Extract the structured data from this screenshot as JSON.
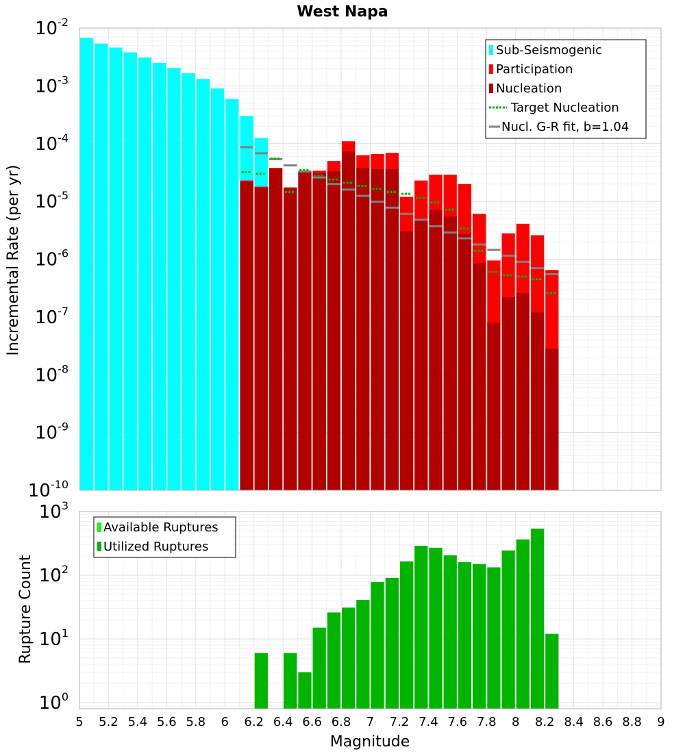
{
  "chart_data": [
    {
      "type": "bar",
      "title": "West Napa",
      "xlabel": "",
      "ylabel": "Incremental Rate (per yr)",
      "yscale": "log",
      "xlim": [
        5,
        9
      ],
      "ylim": [
        1e-10,
        0.01
      ],
      "y_tick_labels": [
        {
          "base": "10",
          "exp": "-10"
        },
        {
          "base": "10",
          "exp": "-9"
        },
        {
          "base": "10",
          "exp": "-8"
        },
        {
          "base": "10",
          "exp": "-7"
        },
        {
          "base": "10",
          "exp": "-6"
        },
        {
          "base": "10",
          "exp": "-5"
        },
        {
          "base": "10",
          "exp": "-4"
        },
        {
          "base": "10",
          "exp": "-3"
        },
        {
          "base": "10",
          "exp": "-2"
        }
      ],
      "legend": [
        {
          "label": "Sub-Seismogenic",
          "color": "#00ffff",
          "kind": "box"
        },
        {
          "label": "Participation",
          "color": "#ff0000",
          "kind": "box"
        },
        {
          "label": "Nucleation",
          "color": "#b20000",
          "kind": "box"
        },
        {
          "label": "Target Nucleation",
          "color": "#00b400",
          "kind": "dotted"
        },
        {
          "label": "Nucl. G-R fit, b=1.04",
          "color": "#808080",
          "kind": "line"
        }
      ],
      "legend_position": "top-right",
      "series": [
        {
          "name": "Sub-Seismogenic",
          "color": "#00ffff",
          "x": [
            5.05,
            5.15,
            5.25,
            5.35,
            5.45,
            5.55,
            5.65,
            5.75,
            5.85,
            5.95,
            6.05,
            6.15,
            6.25
          ],
          "values": [
            0.0068,
            0.0054,
            0.0046,
            0.0038,
            0.0031,
            0.0025,
            0.00205,
            0.00165,
            0.00132,
            0.0009,
            0.00059,
            0.0003,
            0.000125
          ]
        },
        {
          "name": "Participation",
          "color": "#ff0000",
          "x": [
            6.15,
            6.25,
            6.35,
            6.45,
            6.55,
            6.65,
            6.75,
            6.85,
            6.95,
            7.05,
            7.15,
            7.25,
            7.35,
            7.45,
            7.55,
            7.65,
            7.75,
            7.85,
            7.95,
            8.05,
            8.15,
            8.25
          ],
          "values": [
            2.3e-05,
            1.8e-05,
            3.8e-05,
            1.75e-05,
            3.3e-05,
            3.4e-05,
            5e-05,
            0.00011,
            6.3e-05,
            6.6e-05,
            6.9e-05,
            1.2e-05,
            2.3e-05,
            2.9e-05,
            2.9e-05,
            2e-05,
            6.1e-06,
            9.5e-07,
            2.8e-06,
            4.1e-06,
            2.6e-06,
            6.5e-07
          ]
        },
        {
          "name": "Nucleation",
          "color": "#b20000",
          "x": [
            6.15,
            6.25,
            6.35,
            6.45,
            6.55,
            6.65,
            6.75,
            6.85,
            6.95,
            7.05,
            7.15,
            7.25,
            7.35,
            7.45,
            7.55,
            7.65,
            7.75,
            7.85,
            7.95,
            8.05,
            8.15,
            8.25
          ],
          "values": [
            2.2e-05,
            1.75e-05,
            3.75e-05,
            1.7e-05,
            3.25e-05,
            3.1e-05,
            3.3e-05,
            7.3e-05,
            3.8e-05,
            3.6e-05,
            3.6e-05,
            3e-06,
            5e-06,
            7.1e-06,
            5.5e-06,
            2.7e-06,
            8.5e-07,
            8e-08,
            2.2e-07,
            2.6e-07,
            1.2e-07,
            2.8e-08
          ]
        },
        {
          "name": "Target Nucleation",
          "color": "#00b400",
          "style": "dotted",
          "x": [
            6.15,
            6.25,
            6.35,
            6.45,
            6.55,
            6.65,
            6.75,
            6.85,
            6.95,
            7.05,
            7.15,
            7.25,
            7.35,
            7.45,
            7.55,
            7.65,
            7.75,
            7.85,
            7.95,
            8.05,
            8.15,
            8.25
          ],
          "values": [
            3.2e-05,
            3e-05,
            5.5e-05,
            1.45e-05,
            3.5e-05,
            2.8e-05,
            2.4e-05,
            2.1e-05,
            1.85e-05,
            1.65e-05,
            1.45e-05,
            1.35e-05,
            1.15e-05,
            9.6e-06,
            7.2e-06,
            3.4e-06,
            1.4e-06,
            6e-07,
            5.3e-07,
            5e-07,
            4.5e-07,
            2.6e-07
          ]
        },
        {
          "name": "Nucl. G-R fit, b=1.04",
          "color": "#808080",
          "style": "line",
          "x": [
            6.15,
            6.25,
            6.35,
            6.45,
            6.55,
            6.65,
            6.75,
            6.85,
            6.95,
            7.05,
            7.15,
            7.25,
            7.35,
            7.45,
            7.55,
            7.65,
            7.75,
            7.85,
            7.95,
            8.05,
            8.15,
            8.25
          ],
          "values": [
            8.7e-05,
            6.8e-05,
            5.4e-05,
            4.2e-05,
            3.3e-05,
            2.6e-05,
            2e-05,
            1.6e-05,
            1.25e-05,
            9.9e-06,
            7.8e-06,
            6.1e-06,
            4.8e-06,
            3.7e-06,
            2.9e-06,
            2.3e-06,
            1.8e-06,
            1.45e-06,
            1.15e-06,
            9e-07,
            7e-07,
            5.5e-07
          ]
        }
      ]
    },
    {
      "type": "bar",
      "title": "",
      "xlabel": "Magnitude",
      "ylabel": "Rupture Count",
      "yscale": "log",
      "xlim": [
        5,
        9
      ],
      "ylim": [
        0.8,
        1000
      ],
      "x_tick_labels": [
        "5",
        "5.2",
        "5.4",
        "5.6",
        "5.8",
        "6",
        "6.2",
        "6.4",
        "6.6",
        "6.8",
        "7",
        "7.2",
        "7.4",
        "7.6",
        "7.8",
        "8",
        "8.2",
        "8.4",
        "8.6",
        "8.8",
        "9"
      ],
      "y_tick_labels": [
        {
          "base": "10",
          "exp": "0"
        },
        {
          "base": "10",
          "exp": "1"
        },
        {
          "base": "10",
          "exp": "2"
        },
        {
          "base": "10",
          "exp": "3"
        }
      ],
      "legend": [
        {
          "label": "Available Ruptures",
          "color": "#00ff00"
        },
        {
          "label": "Utilized Ruptures",
          "color": "#00b400"
        }
      ],
      "legend_position": "top-left",
      "series": [
        {
          "name": "Utilized Ruptures",
          "color": "#00b400",
          "x": [
            6.25,
            6.45,
            6.55,
            6.65,
            6.75,
            6.85,
            6.95,
            7.05,
            7.15,
            7.25,
            7.35,
            7.45,
            7.55,
            7.65,
            7.75,
            7.85,
            7.95,
            8.05,
            8.15,
            8.25
          ],
          "values": [
            6,
            6,
            3,
            15,
            26,
            31,
            41,
            78,
            91,
            165,
            290,
            270,
            205,
            160,
            150,
            133,
            245,
            365,
            540,
            12
          ]
        }
      ]
    }
  ]
}
